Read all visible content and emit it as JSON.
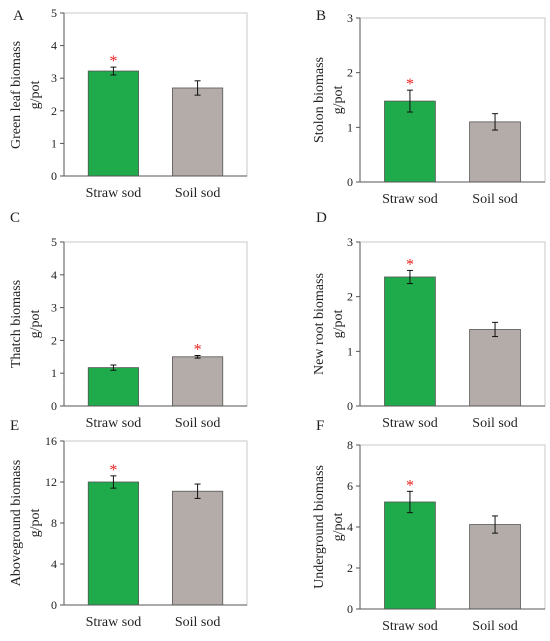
{
  "chart_data": [
    {
      "panel": "A",
      "type": "bar",
      "categories": [
        "Straw sod",
        "Soil sod"
      ],
      "values": [
        3.22,
        2.7
      ],
      "errors": [
        0.12,
        0.22
      ],
      "significance": [
        "*",
        ""
      ],
      "ylabel": [
        "Green leaf biomass",
        "g/pot"
      ],
      "ylim": [
        0,
        5
      ],
      "yticks": [
        "0",
        "1",
        "2",
        "3",
        "4",
        "5"
      ],
      "colors": [
        "#1faa4b",
        "#b3aca9"
      ]
    },
    {
      "panel": "B",
      "type": "bar",
      "categories": [
        "Straw sod",
        "Soil sod"
      ],
      "values": [
        1.48,
        1.1
      ],
      "errors": [
        0.2,
        0.15
      ],
      "significance": [
        "*",
        ""
      ],
      "ylabel": [
        "Stolon biomass",
        "g/pot"
      ],
      "ylim": [
        0,
        3
      ],
      "yticks": [
        "0",
        "1",
        "2",
        "3"
      ],
      "colors": [
        "#1faa4b",
        "#b3aca9"
      ]
    },
    {
      "panel": "C",
      "type": "bar",
      "categories": [
        "Straw sod",
        "Soil sod"
      ],
      "values": [
        1.17,
        1.5
      ],
      "errors": [
        0.08,
        0.04
      ],
      "significance": [
        "",
        "*"
      ],
      "ylabel": [
        "Thatch biomass",
        "g/pot"
      ],
      "ylim": [
        0,
        5
      ],
      "yticks": [
        "0",
        "1",
        "2",
        "3",
        "4",
        "5"
      ],
      "colors": [
        "#1faa4b",
        "#b3aca9"
      ]
    },
    {
      "panel": "D",
      "type": "bar",
      "categories": [
        "Straw sod",
        "Soil sod"
      ],
      "values": [
        2.36,
        1.4
      ],
      "errors": [
        0.12,
        0.13
      ],
      "significance": [
        "*",
        ""
      ],
      "ylabel": [
        "New root biomass",
        "g/pot"
      ],
      "ylim": [
        0,
        3
      ],
      "yticks": [
        "0",
        "1",
        "2",
        "3"
      ],
      "colors": [
        "#1faa4b",
        "#b3aca9"
      ]
    },
    {
      "panel": "E",
      "type": "bar",
      "categories": [
        "Straw sod",
        "Soil sod"
      ],
      "values": [
        12.0,
        11.1
      ],
      "errors": [
        0.6,
        0.7
      ],
      "significance": [
        "*",
        ""
      ],
      "ylabel": [
        "Aboveground biomass",
        "g/pot"
      ],
      "ylim": [
        0,
        16
      ],
      "yticks": [
        "0",
        "4",
        "8",
        "12",
        "16"
      ],
      "colors": [
        "#1faa4b",
        "#b3aca9"
      ]
    },
    {
      "panel": "F",
      "type": "bar",
      "categories": [
        "Straw sod",
        "Soil sod"
      ],
      "values": [
        5.22,
        4.12
      ],
      "errors": [
        0.52,
        0.42
      ],
      "significance": [
        "*",
        ""
      ],
      "ylabel": [
        "Underground biomass",
        "g/pot"
      ],
      "ylim": [
        0,
        8
      ],
      "yticks": [
        "0",
        "2",
        "4",
        "6",
        "8"
      ],
      "colors": [
        "#1faa4b",
        "#b3aca9"
      ]
    }
  ]
}
